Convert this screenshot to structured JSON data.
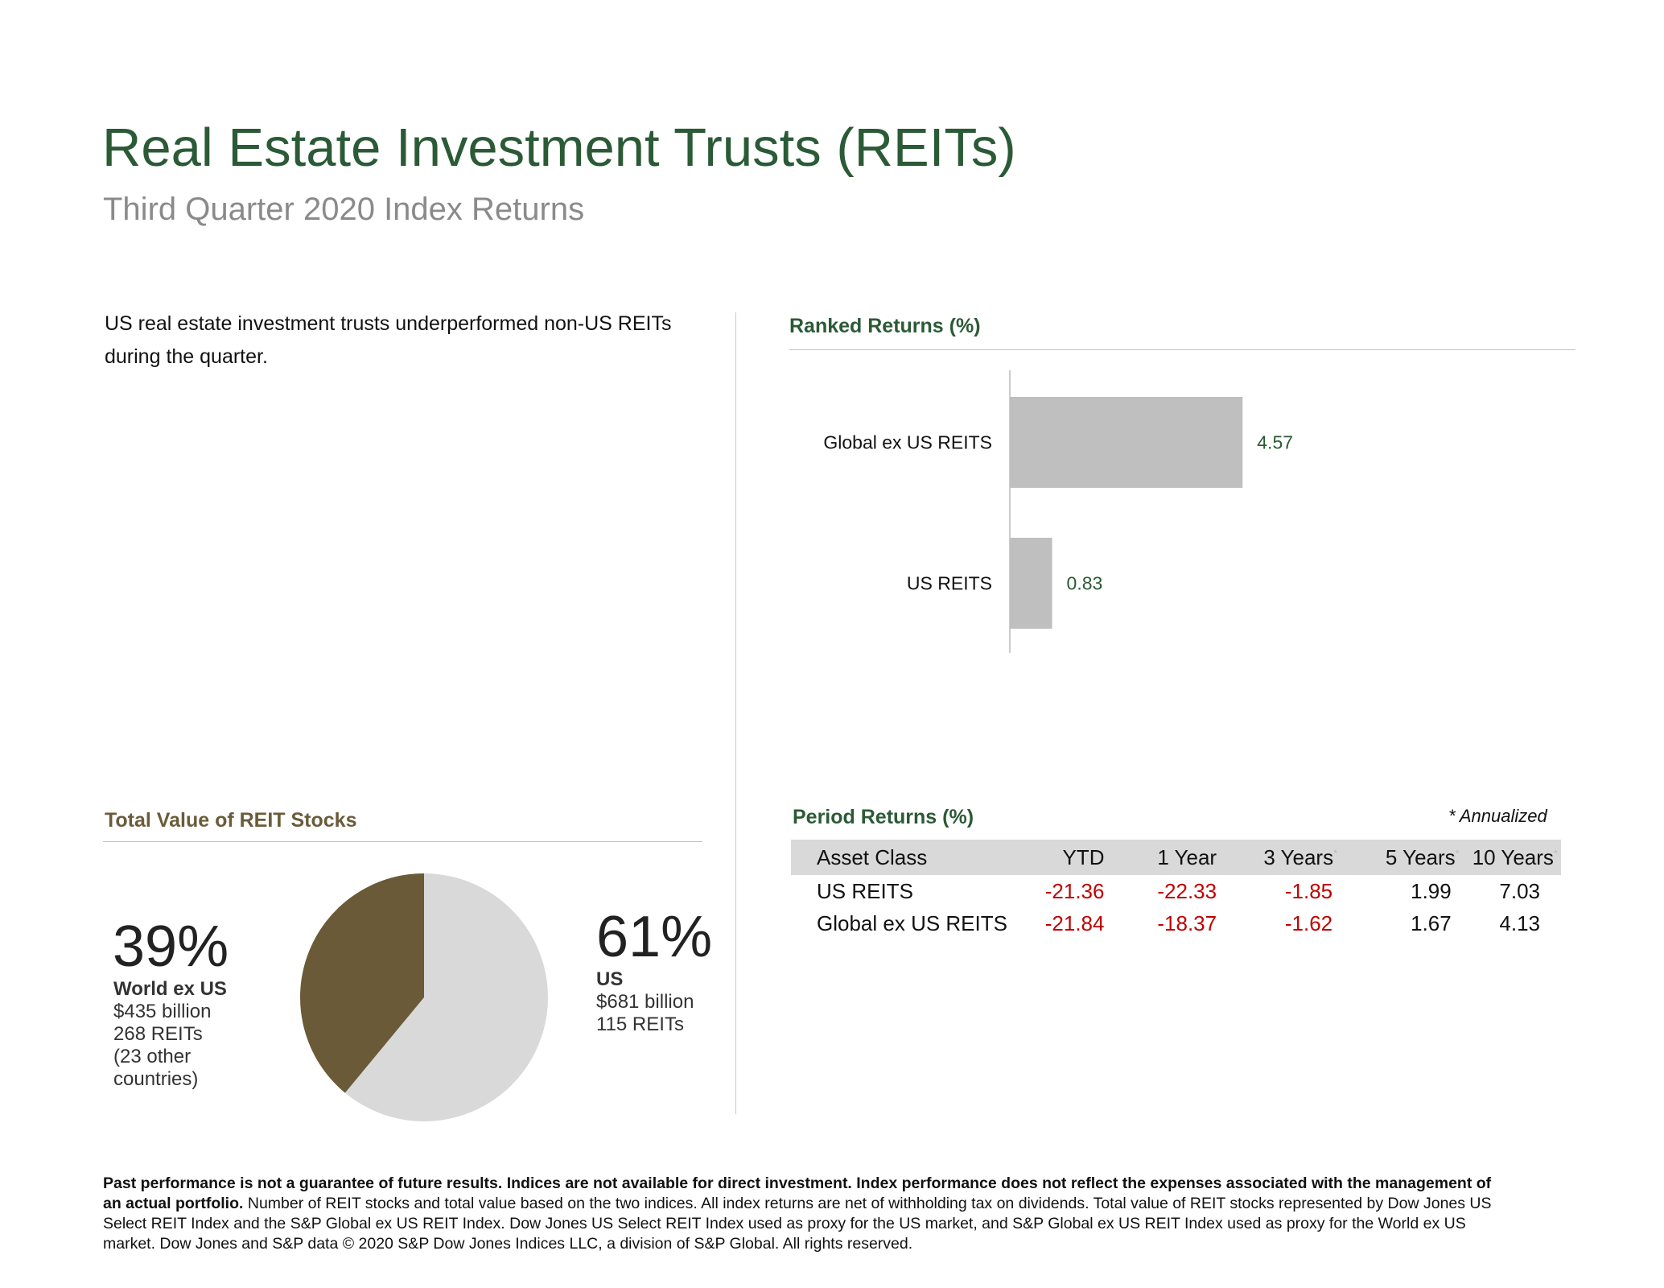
{
  "title": "Real Estate Investment Trusts (REITs)",
  "subtitle": "Third Quarter 2020 Index Returns",
  "intro_text": "US real estate investment trusts underperformed non-US REITs during the quarter.",
  "ranked_returns": {
    "title": "Ranked Returns (%)"
  },
  "chart_data": [
    {
      "type": "bar",
      "orientation": "horizontal",
      "title": "Ranked Returns (%)",
      "categories": [
        "Global ex US REITS",
        "US REITS"
      ],
      "values": [
        4.57,
        0.83
      ],
      "value_labels": [
        "4.57",
        "0.83"
      ],
      "bar_color": "#bfbfbf",
      "label_color": "#2b5a36",
      "xlim": [
        0,
        15
      ],
      "grid": false
    },
    {
      "type": "pie",
      "title": "Total Value of REIT Stocks",
      "slices": [
        {
          "name": "US",
          "value": 61,
          "color": "#d9d9d9"
        },
        {
          "name": "World ex US",
          "value": 39,
          "color": "#6b5a37"
        }
      ]
    }
  ],
  "pie_section": {
    "title": "Total Value of REIT Stocks",
    "world": {
      "pct": "39%",
      "name": "World ex US",
      "value": "$435 billion",
      "count": "268 REITs",
      "note": "(23 other countries)"
    },
    "us": {
      "pct": "61%",
      "name": "US",
      "value": "$681 billion",
      "count": "115 REITs"
    }
  },
  "period_returns": {
    "title": "Period Returns (%)",
    "annotation": "* Annualized",
    "columns": [
      "Asset Class",
      "YTD",
      "1 Year",
      "3 Years",
      "5 Years",
      "10 Years"
    ],
    "star": "*",
    "rows": [
      {
        "name": "US REITS",
        "values": [
          "-21.36",
          "-22.33",
          "-1.85",
          "1.99",
          "7.03"
        ]
      },
      {
        "name": "Global ex US REITS",
        "values": [
          "-21.84",
          "-18.37",
          "-1.62",
          "1.67",
          "4.13"
        ]
      }
    ],
    "colors": {
      "negative": "#c00000",
      "positive": "#111111"
    }
  },
  "disclaimer": {
    "bold": "Past performance is not a guarantee of future results. Indices are not available for direct investment. Index performance does not reflect the expenses associated with the management of an actual portfolio.",
    "normal": " Number of REIT stocks and total value based on the two indices. All index returns are net of withholding tax on dividends. Total value of REIT stocks represented by Dow Jones US Select REIT Index and the S&P Global ex US REIT Index. Dow Jones US Select REIT Index used as proxy for the US market, and S&P Global ex US REIT Index used as proxy for the World ex US market. Dow Jones and S&P data © 2020 S&P Dow Jones Indices LLC, a division of S&P Global. All rights reserved."
  }
}
